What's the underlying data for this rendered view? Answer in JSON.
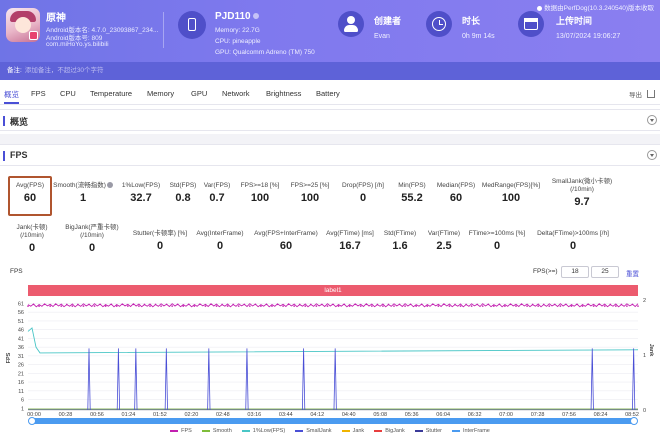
{
  "colors": {
    "accent": "#4a4fd6",
    "header": "#7479e8",
    "label_bar": "#ec5b6e",
    "highlight": "#b0552f"
  },
  "app": {
    "name": "原神",
    "android_line": "Android版本名: 4.7.0_23093867_234...",
    "android_code": "Android版本号: 809",
    "package": "com.miHoYo.ys.bilibili"
  },
  "device": {
    "name": "PJD110",
    "memory": "Memory: 22.7G",
    "cpu": "CPU: pineapple",
    "gpu": "GPU: Qualcomm Adreno (TM) 750"
  },
  "creator": {
    "label": "创建者",
    "value": "Evan"
  },
  "duration": {
    "label": "时长",
    "value": "0h 9m 14s"
  },
  "upload": {
    "label": "上传时间",
    "value": "13/07/2024 19:06:27"
  },
  "data_note": "数据由PerfDog(10.3.240540)版本收取",
  "remark": {
    "label": "备注:",
    "placeholder": "添加备注，不超过30个字符"
  },
  "tabs": [
    "概览",
    "FPS",
    "CPU",
    "Temperature",
    "Memory",
    "GPU",
    "Network",
    "Brightness",
    "Battery"
  ],
  "export_label": "导出",
  "overview_title": "概览",
  "fps_title": "FPS",
  "metrics_row1": [
    {
      "label": "Avg(FPS)",
      "value": "60"
    },
    {
      "label": "Smooth(流畅指数)",
      "value": "1"
    },
    {
      "label": "1%Low(FPS)",
      "value": "32.7"
    },
    {
      "label": "Std(FPS)",
      "value": "0.8"
    },
    {
      "label": "Var(FPS)",
      "value": "0.7"
    },
    {
      "label": "FPS>=18 [%]",
      "value": "100"
    },
    {
      "label": "FPS>=25 [%]",
      "value": "100"
    },
    {
      "label": "Drop(FPS) [/h]",
      "value": "0"
    },
    {
      "label": "Min(FPS)",
      "value": "55.2"
    },
    {
      "label": "Median(FPS)",
      "value": "60"
    },
    {
      "label": "MedRange(FPS)[%]",
      "value": "100"
    },
    {
      "label": "SmallJank(微小卡顿)",
      "label2": "(/10min)",
      "value": "9.7"
    }
  ],
  "metrics_row2": [
    {
      "label": "Jank(卡顿)",
      "label2": "(/10min)",
      "value": "0"
    },
    {
      "label": "BigJank(严重卡顿)",
      "label2": "(/10min)",
      "value": "0"
    },
    {
      "label": "Stutter(卡顿率) [%]",
      "value": "0"
    },
    {
      "label": "Avg(InterFrame)",
      "value": "0"
    },
    {
      "label": "Avg(FPS+InterFrame)",
      "value": "60"
    },
    {
      "label": "Avg(FTime) [ms]",
      "value": "16.7"
    },
    {
      "label": "Std(FTime)",
      "value": "1.6"
    },
    {
      "label": "Var(FTime)",
      "value": "2.5"
    },
    {
      "label": "FTime>=100ms [%]",
      "value": "0"
    },
    {
      "label": "Delta(FTime)>100ms [/h]",
      "value": "0"
    }
  ],
  "chart_controls": {
    "chart_label": "FPS",
    "threshold_label": "FPS(>=)",
    "threshold1": "18",
    "threshold2": "25",
    "reset_label": "重置"
  },
  "chart_data": {
    "type": "line",
    "label_bar": "label1",
    "y_left_label": "FPS",
    "y_right_label": "Jank",
    "y_ticks_left": [
      "61",
      "56",
      "51",
      "46",
      "41",
      "36",
      "31",
      "26",
      "21",
      "16",
      "11",
      "6",
      "1"
    ],
    "y_ticks_right": [
      "2",
      "1",
      "0"
    ],
    "x_ticks": [
      "00:00",
      "00:28",
      "00:56",
      "01:24",
      "01:52",
      "02:20",
      "02:48",
      "03:16",
      "03:44",
      "04:12",
      "04:40",
      "05:08",
      "05:36",
      "06:04",
      "06:32",
      "07:00",
      "07:28",
      "07:56",
      "08:24",
      "08:52"
    ],
    "ylim_left": [
      0,
      63
    ],
    "ylim_right": [
      0,
      2
    ],
    "fps_baseline": 60,
    "fps_range": [
      58.8,
      61.2
    ],
    "smoothjank_times_s": [
      56,
      83,
      99,
      127,
      166,
      201,
      253,
      282,
      518,
      556
    ],
    "onepct_low_start": 32.7,
    "onepct_low_end": 34.5,
    "series_names": [
      "FPS",
      "Smooth",
      "1%Low(FPS)",
      "SmallJank",
      "Jank",
      "BigJank",
      "Stutter",
      "InterFrame"
    ],
    "series_colors": [
      "#c21fb0",
      "#7fbd3a",
      "#49c6c6",
      "#4a4fd6",
      "#f0b400",
      "#e83e3e",
      "#3a3a99",
      "#4b9bf0"
    ]
  }
}
